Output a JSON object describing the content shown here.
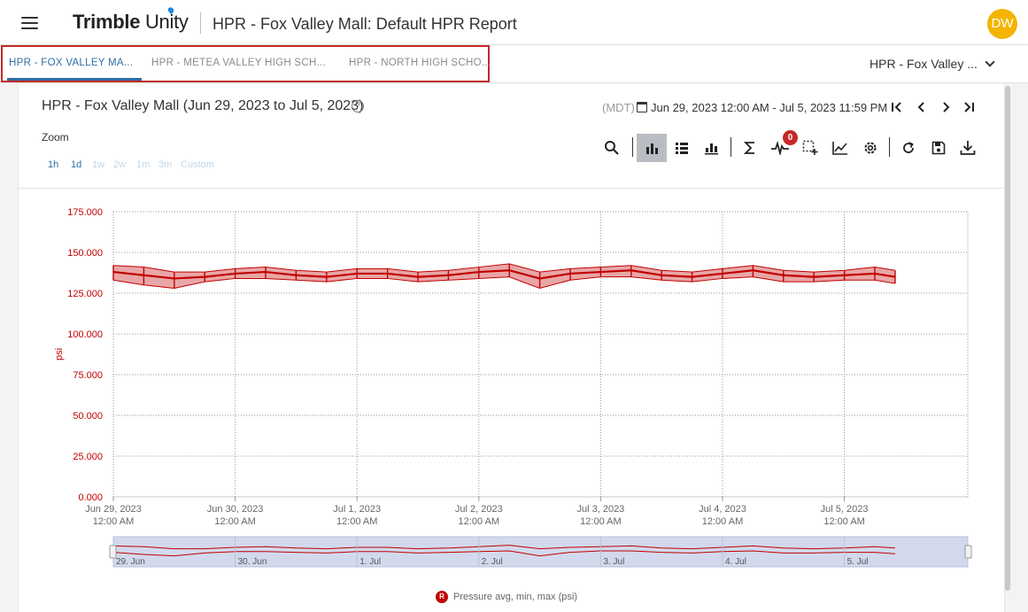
{
  "header": {
    "brand_bold": "Trimble",
    "brand_light": " Unity",
    "title": "HPR - Fox Valley Mall: Default HPR Report",
    "avatar_initials": "DW",
    "avatar_color": "#f4b400"
  },
  "tabs": [
    {
      "label": "HPR - FOX VALLEY MA...",
      "active": true
    },
    {
      "label": "HPR - METEA VALLEY HIGH SCH...",
      "active": false
    },
    {
      "label": "HPR - NORTH HIGH SCHO...",
      "active": false
    }
  ],
  "report_select": {
    "value": "HPR - Fox Valley ..."
  },
  "panel": {
    "title": "HPR - Fox Valley Mall (Jun 29, 2023 to Jul 5, 2023)",
    "help_icon": "?",
    "timezone": "(MDT)",
    "date_range": "Jun 29, 2023 12:00 AM - Jul 5, 2023 11:59 PM",
    "zoom_label": "Zoom",
    "zoom_options": [
      "1h",
      "1d",
      "1w",
      "2w",
      "1m",
      "3m",
      "Custom"
    ],
    "zoom_enabled": [
      true,
      true,
      false,
      false,
      false,
      false,
      false
    ],
    "alert_count": "0",
    "icons": [
      "search-icon",
      "bar-chart-icon",
      "list-icon",
      "stacked-bar-icon",
      "sigma-icon",
      "waveform-icon",
      "select-region-icon",
      "line-chart-icon",
      "settings-icon",
      "refresh-icon",
      "save-icon",
      "download-icon"
    ]
  },
  "chart_data": {
    "type": "line",
    "ylabel": "psi",
    "ylim": [
      0,
      175
    ],
    "y_ticks": [
      "0.000",
      "25.000",
      "50.000",
      "75.000",
      "100.000",
      "125.000",
      "150.000",
      "175.000"
    ],
    "x_ticks": [
      {
        "date": "Jun 29, 2023",
        "time": "12:00 AM"
      },
      {
        "date": "Jun 30, 2023",
        "time": "12:00 AM"
      },
      {
        "date": "Jul 1, 2023",
        "time": "12:00 AM"
      },
      {
        "date": "Jul 2, 2023",
        "time": "12:00 AM"
      },
      {
        "date": "Jul 3, 2023",
        "time": "12:00 AM"
      },
      {
        "date": "Jul 4, 2023",
        "time": "12:00 AM"
      },
      {
        "date": "Jul 5, 2023",
        "time": "12:00 AM"
      }
    ],
    "navigator_labels": [
      "29. Jun",
      "30. Jun",
      "1. Jul",
      "2. Jul",
      "3. Jul",
      "4. Jul",
      "5. Jul"
    ],
    "series": [
      {
        "name": "Pressure avg, min, max (psi)",
        "legend_badge": "R",
        "color": "#c00000",
        "x": [
          "2023-06-29 00:00",
          "2023-06-29 06:00",
          "2023-06-29 12:00",
          "2023-06-29 18:00",
          "2023-06-30 00:00",
          "2023-06-30 06:00",
          "2023-06-30 12:00",
          "2023-06-30 18:00",
          "2023-07-01 00:00",
          "2023-07-01 06:00",
          "2023-07-01 12:00",
          "2023-07-01 18:00",
          "2023-07-02 00:00",
          "2023-07-02 06:00",
          "2023-07-02 12:00",
          "2023-07-02 18:00",
          "2023-07-03 00:00",
          "2023-07-03 06:00",
          "2023-07-03 12:00",
          "2023-07-03 18:00",
          "2023-07-04 00:00",
          "2023-07-04 06:00",
          "2023-07-04 12:00",
          "2023-07-04 18:00",
          "2023-07-05 00:00",
          "2023-07-05 06:00",
          "2023-07-05 10:00"
        ],
        "avg": [
          138,
          136,
          134,
          135,
          137,
          138,
          136,
          135,
          137,
          137,
          135,
          136,
          138,
          139,
          134,
          137,
          138,
          139,
          136,
          135,
          137,
          139,
          136,
          135,
          136,
          137,
          135
        ],
        "min": [
          133,
          130,
          128,
          132,
          134,
          134,
          133,
          132,
          134,
          134,
          132,
          133,
          134,
          135,
          128,
          133,
          135,
          135,
          133,
          132,
          134,
          135,
          132,
          132,
          133,
          133,
          131
        ],
        "max": [
          142,
          141,
          138,
          138,
          140,
          141,
          139,
          138,
          140,
          140,
          138,
          139,
          141,
          143,
          138,
          140,
          141,
          142,
          139,
          138,
          140,
          142,
          139,
          138,
          139,
          141,
          139
        ]
      }
    ],
    "grid": true,
    "legend_position": "bottom-center"
  },
  "colors": {
    "accent": "#2f6ea5",
    "series": "#c00000",
    "highlight_box": "#c62828",
    "navigator_fill": "#d2d9ec"
  }
}
